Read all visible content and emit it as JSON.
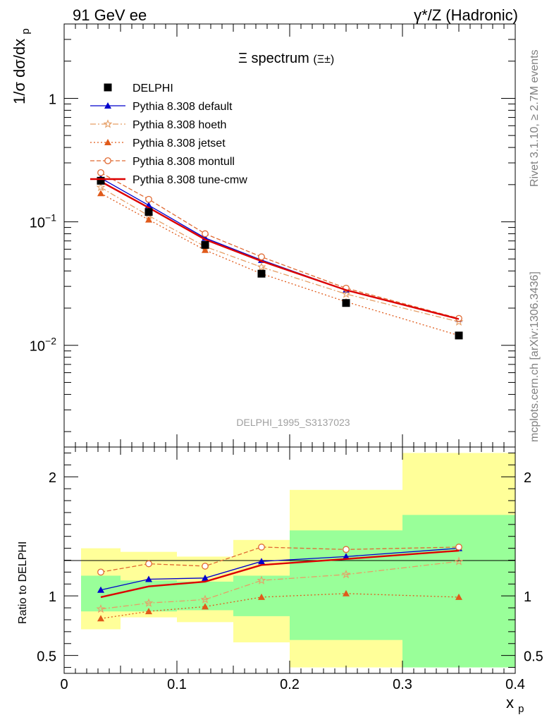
{
  "header": {
    "left": "91 GeV ee",
    "right": "γ*/Z (Hadronic)"
  },
  "side_labels": {
    "rivet": "Rivet 3.1.10, ≥ 2.7M events",
    "mcplots": "mcplots.cern.ch [arXiv:1306.3436]"
  },
  "chart_data": {
    "type": "line",
    "title": "Ξ spectrum",
    "title_suffix": "(Ξ±)",
    "watermark": "DELPHI_1995_S3137023",
    "xlabel": "x",
    "xlabel_sub": "p",
    "ylabel": "1/σ dσ/dx",
    "ylabel_sub": "p",
    "ratio_ylabel": "Ratio to DELPHI",
    "xlim": [
      0,
      0.4
    ],
    "ylim": [
      0.0015,
      4.0
    ],
    "yscale": "log",
    "ratio_ylim": [
      0.35,
      2.25
    ],
    "x_ticks": [
      "0",
      "0.1",
      "0.2",
      "0.3",
      "0.4"
    ],
    "y_ticks": [
      {
        "value": 1,
        "base": "1",
        "exp": ""
      },
      {
        "value": 0.1,
        "base": "10",
        "exp": "−1"
      },
      {
        "value": 0.01,
        "base": "10",
        "exp": "−2"
      }
    ],
    "ratio_ticks": [
      "0.5",
      "1",
      "2"
    ],
    "x": [
      0.0325,
      0.075,
      0.125,
      0.175,
      0.25,
      0.35
    ],
    "bin_edges": [
      0.015,
      0.05,
      0.1,
      0.15,
      0.2,
      0.3,
      0.4
    ],
    "data": {
      "name": "DELPHI",
      "values": [
        0.215,
        0.12,
        0.065,
        0.038,
        0.022,
        0.012
      ],
      "color": "#000000"
    },
    "bands": {
      "green": [
        [
          0.87,
          1.17
        ],
        [
          0.87,
          1.13
        ],
        [
          0.88,
          1.12
        ],
        [
          0.83,
          1.17
        ],
        [
          0.63,
          1.55
        ],
        [
          0.4,
          1.68
        ]
      ],
      "yellow": [
        [
          0.72,
          1.4
        ],
        [
          0.82,
          1.37
        ],
        [
          0.78,
          1.33
        ],
        [
          0.61,
          1.47
        ],
        [
          0.4,
          1.89
        ],
        [
          0.4,
          2.2
        ]
      ],
      "green_color": "#99ff99",
      "yellow_color": "#ffff99"
    },
    "series": [
      {
        "name": "Pythia 8.308 default",
        "color": "#0000cc",
        "dash": "",
        "marker": "triangle-filled",
        "values": [
          0.226,
          0.136,
          0.074,
          0.049,
          0.028,
          0.0163
        ],
        "ratio": [
          1.05,
          1.14,
          1.15,
          1.29,
          1.33,
          1.4
        ]
      },
      {
        "name": "Pythia 8.308 hoeth",
        "color": "#e69f66",
        "dash": "8,3,2,3",
        "marker": "star-open",
        "values": [
          0.19,
          0.112,
          0.063,
          0.043,
          0.026,
          0.0155
        ],
        "ratio": [
          0.89,
          0.94,
          0.97,
          1.13,
          1.18,
          1.29
        ]
      },
      {
        "name": "Pythia 8.308 jetset",
        "color": "#e05a1a",
        "dash": "2,3",
        "marker": "triangle-filled",
        "values": [
          0.17,
          0.104,
          0.059,
          0.038,
          0.0225,
          0.012
        ],
        "ratio": [
          0.81,
          0.87,
          0.91,
          0.99,
          1.02,
          0.99
        ]
      },
      {
        "name": "Pythia 8.308 montull",
        "color": "#e06a33",
        "dash": "6,3",
        "marker": "circle-open",
        "values": [
          0.25,
          0.152,
          0.08,
          0.052,
          0.029,
          0.0165
        ],
        "ratio": [
          1.2,
          1.27,
          1.25,
          1.41,
          1.39,
          1.41
        ]
      },
      {
        "name": "Pythia 8.308 tune-cmw",
        "color": "#dd0000",
        "dash": "",
        "marker": "none",
        "values": [
          0.212,
          0.13,
          0.072,
          0.048,
          0.028,
          0.0163
        ],
        "ratio": [
          0.99,
          1.08,
          1.12,
          1.26,
          1.31,
          1.38
        ]
      }
    ]
  }
}
